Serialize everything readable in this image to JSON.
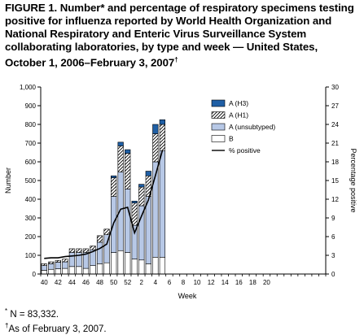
{
  "figure": {
    "title_prefix": "FIGURE 1. Number",
    "title_body": " and percentage of respiratory specimens testing positive for influenza reported by World Health Organization and National Respiratory and Enteric Virus Surveillance System collaborating laboratories, by type and week — United States, October 1, 2006–February 3, 2007",
    "title_mark_star": "*",
    "title_mark_dagger": "†",
    "footnote_n_mark": "*",
    "footnote_n": " N = 83,332.",
    "footnote_date_mark": "†",
    "footnote_date": "As of February 3, 2007."
  },
  "colors": {
    "A_H3": "#1f5fa5",
    "A_H1_hatch": "#000000",
    "A_unsubtyped": "#b7c8e6",
    "B": "#ffffff",
    "pct_line": "#000000"
  },
  "chart_data": {
    "type": "bar",
    "stacked": true,
    "xlabel": "Week",
    "ylabel": "Number",
    "y2label": "Percentage positive",
    "ylim": [
      0,
      1000
    ],
    "y2lim": [
      0,
      30
    ],
    "yticks": [
      "0",
      "100",
      "200",
      "300",
      "400",
      "500",
      "600",
      "700",
      "800",
      "900",
      "1,000"
    ],
    "y2ticks": [
      "0",
      "3",
      "6",
      "9",
      "12",
      "15",
      "18",
      "21",
      "24",
      "27",
      "30"
    ],
    "xticks": [
      "40",
      "42",
      "44",
      "46",
      "48",
      "50",
      "52",
      "2",
      "4",
      "6",
      "8",
      "10",
      "12",
      "14",
      "16",
      "18",
      "20"
    ],
    "weeks": [
      40,
      41,
      42,
      43,
      44,
      45,
      46,
      47,
      48,
      49,
      50,
      51,
      52,
      1,
      2,
      3,
      4,
      5
    ],
    "series": [
      {
        "name": "B",
        "values": [
          20,
          25,
          28,
          30,
          40,
          40,
          30,
          45,
          55,
          60,
          115,
          125,
          115,
          80,
          75,
          55,
          90,
          90
        ]
      },
      {
        "name": "A (unsubtyped)",
        "values": [
          25,
          30,
          35,
          35,
          75,
          75,
          85,
          85,
          115,
          150,
          300,
          420,
          340,
          180,
          290,
          360,
          510,
          570
        ]
      },
      {
        "name": "A (H1)",
        "values": [
          10,
          10,
          10,
          15,
          20,
          20,
          20,
          20,
          35,
          30,
          100,
          140,
          190,
          120,
          100,
          110,
          150,
          140
        ]
      },
      {
        "name": "A (H3)",
        "values": [
          0,
          0,
          0,
          0,
          0,
          0,
          0,
          0,
          0,
          0,
          10,
          20,
          20,
          10,
          15,
          25,
          50,
          25
        ]
      }
    ],
    "line": {
      "name": "% positive",
      "values": [
        2.5,
        2.6,
        2.6,
        2.8,
        2.9,
        3.0,
        3.2,
        3.6,
        4.1,
        4.8,
        8.2,
        10.4,
        10.7,
        6.6,
        9.3,
        11.9,
        15.8,
        19.8
      ]
    },
    "legend": [
      "A (H3)",
      "A (H1)",
      "A (unsubtyped)",
      "B",
      "% positive"
    ],
    "legend_position": "top-right"
  }
}
